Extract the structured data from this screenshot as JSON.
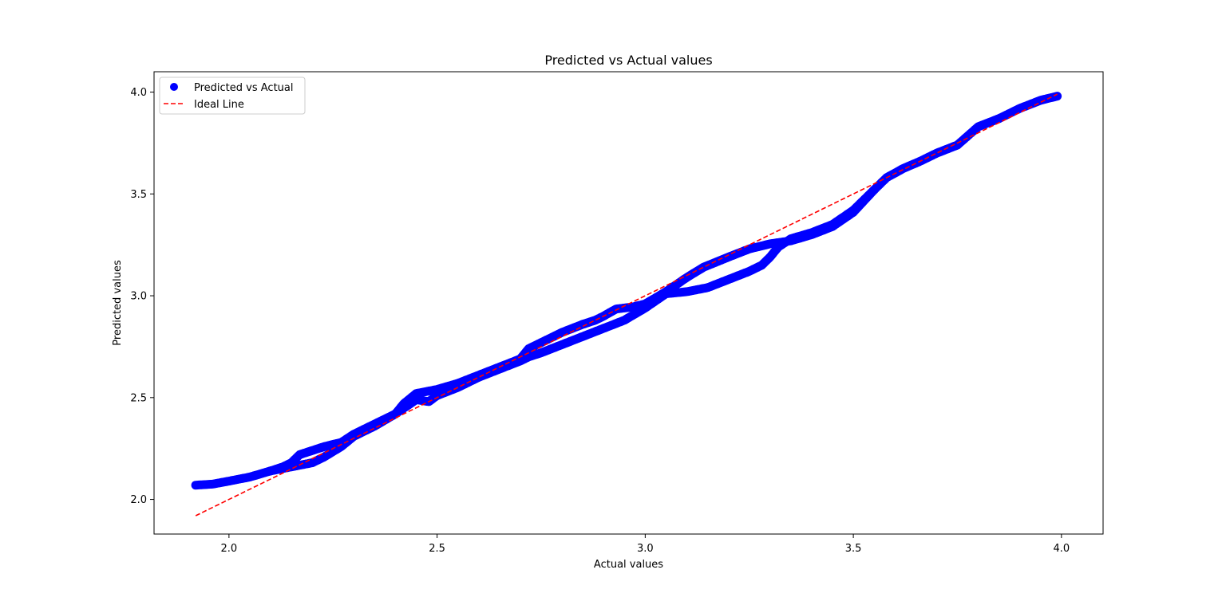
{
  "chart_data": {
    "type": "scatter",
    "title": "Predicted vs Actual values",
    "xlabel": "Actual values",
    "ylabel": "Predicted values",
    "xlim": [
      1.82,
      4.1
    ],
    "ylim": [
      1.83,
      4.1
    ],
    "x_ticks": [
      2.0,
      2.5,
      3.0,
      3.5,
      4.0
    ],
    "x_tick_labels": [
      "2.0",
      "2.5",
      "3.0",
      "3.5",
      "4.0"
    ],
    "y_ticks": [
      2.0,
      2.5,
      3.0,
      3.5,
      4.0
    ],
    "y_tick_labels": [
      "2.0",
      "2.5",
      "3.0",
      "3.5",
      "4.0"
    ],
    "grid": false,
    "legend_position": "top-left",
    "series": [
      {
        "name": "Predicted vs Actual",
        "kind": "scatter",
        "color": "#0000ff",
        "branches": [
          {
            "x": [
              1.92,
              1.96,
              2.0,
              2.05,
              2.1,
              2.13,
              2.15,
              2.17,
              2.2,
              2.23,
              2.27,
              2.3,
              2.35,
              2.4,
              2.42,
              2.45,
              2.5,
              2.55,
              2.6,
              2.65,
              2.7,
              2.72,
              2.75,
              2.8,
              2.85,
              2.88,
              2.9,
              2.93,
              2.97,
              3.0,
              3.05,
              3.1,
              3.14,
              3.2,
              3.25,
              3.3,
              3.35,
              3.4,
              3.45,
              3.5,
              3.55,
              3.58,
              3.62,
              3.66,
              3.7,
              3.75,
              3.8,
              3.85,
              3.9,
              3.95,
              3.99
            ],
            "y": [
              2.07,
              2.075,
              2.09,
              2.11,
              2.14,
              2.16,
              2.18,
              2.22,
              2.24,
              2.26,
              2.28,
              2.32,
              2.37,
              2.42,
              2.47,
              2.52,
              2.54,
              2.57,
              2.61,
              2.65,
              2.69,
              2.74,
              2.77,
              2.82,
              2.86,
              2.88,
              2.9,
              2.935,
              2.945,
              2.96,
              3.02,
              3.09,
              3.14,
              3.19,
              3.23,
              3.255,
              3.27,
              3.3,
              3.34,
              3.41,
              3.52,
              3.58,
              3.625,
              3.66,
              3.7,
              3.74,
              3.83,
              3.87,
              3.92,
              3.96,
              3.98
            ]
          },
          {
            "x": [
              2.1,
              2.15,
              2.2,
              2.23,
              2.27,
              2.3,
              2.35,
              2.4,
              2.45,
              2.48,
              2.5,
              2.55,
              2.6,
              2.65,
              2.7,
              2.72,
              2.75,
              2.8,
              2.85,
              2.9,
              2.95,
              3.0,
              3.05,
              3.1,
              3.15,
              3.2,
              3.25,
              3.28,
              3.3,
              3.32,
              3.35,
              3.4,
              3.45,
              3.5,
              3.55
            ],
            "y": [
              2.14,
              2.16,
              2.18,
              2.21,
              2.26,
              2.31,
              2.36,
              2.42,
              2.49,
              2.48,
              2.51,
              2.55,
              2.6,
              2.64,
              2.68,
              2.7,
              2.72,
              2.76,
              2.8,
              2.84,
              2.88,
              2.94,
              3.01,
              3.02,
              3.04,
              3.08,
              3.12,
              3.15,
              3.19,
              3.24,
              3.28,
              3.31,
              3.35,
              3.42,
              3.52
            ]
          }
        ]
      },
      {
        "name": "Ideal Line",
        "kind": "line",
        "style": "dashed",
        "color": "#ff0000",
        "x": [
          1.92,
          3.99
        ],
        "y": [
          1.92,
          3.99
        ]
      }
    ]
  }
}
